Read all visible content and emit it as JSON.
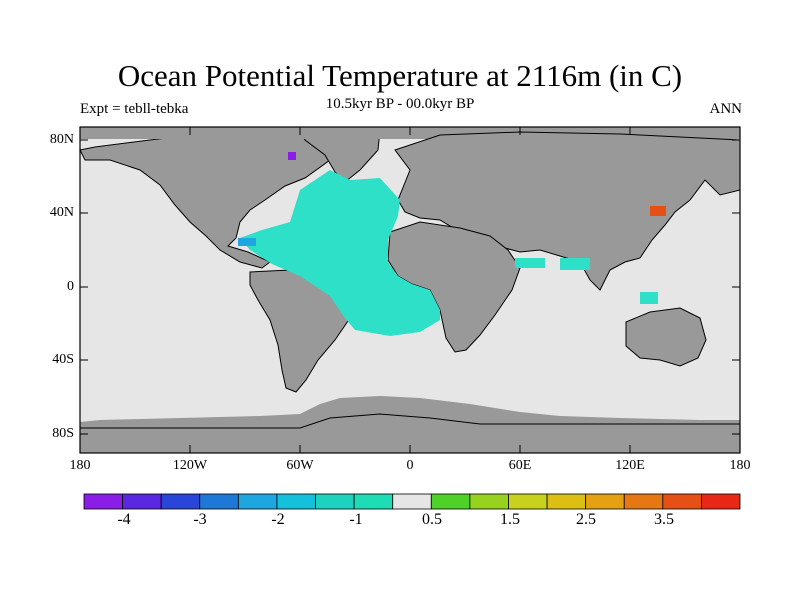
{
  "title": "Ocean Potential Temperature at 2116m (in C)",
  "left_string": "Expt = tebll-tebka",
  "center_string": "10.5kyr BP - 00.0kyr BP",
  "right_string": "ANN",
  "y_ticks": [
    "80N",
    "40N",
    "0",
    "40S",
    "80S"
  ],
  "x_ticks": [
    "180",
    "120W",
    "60W",
    "0",
    "60E",
    "120E",
    "180"
  ],
  "colorbar": {
    "colors": [
      "#8a1ee6",
      "#5a28e0",
      "#2a46d8",
      "#1e78d8",
      "#1ea6e0",
      "#14c0dc",
      "#1ed2c0",
      "#1edcb4",
      "#e6e6e6",
      "#4ed228",
      "#96d21e",
      "#c8d21e",
      "#dcbe14",
      "#e6a014",
      "#e67814",
      "#e65014",
      "#e62814"
    ],
    "labels": [
      "-4",
      "-3",
      "-2",
      "-1",
      "0.5",
      "1.5",
      "2.5",
      "3.5"
    ]
  },
  "colors": {
    "land": "#999999",
    "ocean_zero": "#e6e6e6",
    "negative": "#2ee0c8",
    "strong_negative": "#1ea6e0",
    "positive": "#e65014",
    "very_negative": "#8a1ee6"
  }
}
